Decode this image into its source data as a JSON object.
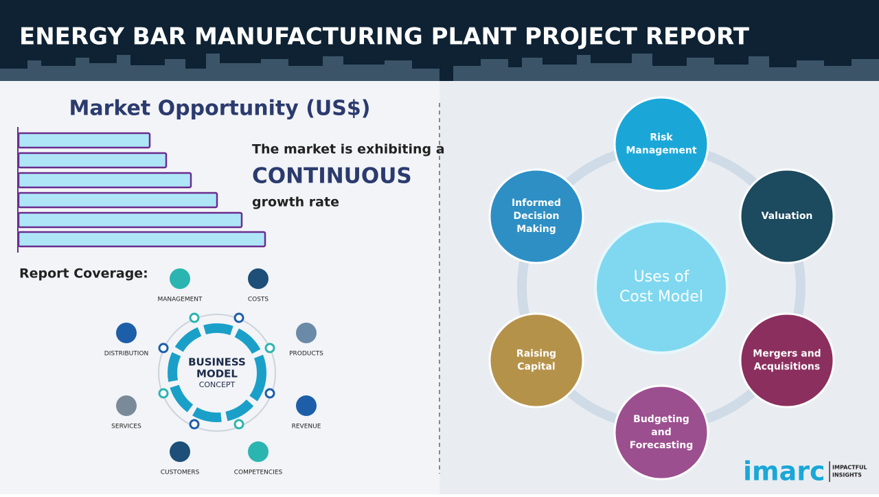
{
  "header": {
    "title": "ENERGY BAR MANUFACTURING PLANT PROJECT REPORT"
  },
  "market": {
    "title": "Market Opportunity (US$)",
    "lines": [
      "The market is exhibiting a",
      "CONTINUOUS",
      "growth rate"
    ]
  },
  "coverage": {
    "title": "Report Coverage:",
    "center": [
      "BUSINESS",
      "MODEL",
      "CONCEPT"
    ],
    "items": [
      "MANAGEMENT",
      "COSTS",
      "PRODUCTS",
      "REVENUE",
      "COMPETENCIES",
      "CUSTOMERS",
      "SERVICES",
      "DISTRIBUTION"
    ]
  },
  "uses": {
    "center": [
      "Uses of",
      "Cost Model"
    ],
    "items": [
      [
        "Risk",
        "Management"
      ],
      [
        "Valuation"
      ],
      [
        "Mergers and",
        "Acquisitions"
      ],
      [
        "Budgeting",
        "and",
        "Forecasting"
      ],
      [
        "Raising",
        "Capital"
      ],
      [
        "Informed",
        "Decision",
        "Making"
      ]
    ]
  },
  "logo": {
    "brand": "imarc",
    "tagline": [
      "IMPACTFUL",
      "INSIGHTS"
    ]
  }
}
